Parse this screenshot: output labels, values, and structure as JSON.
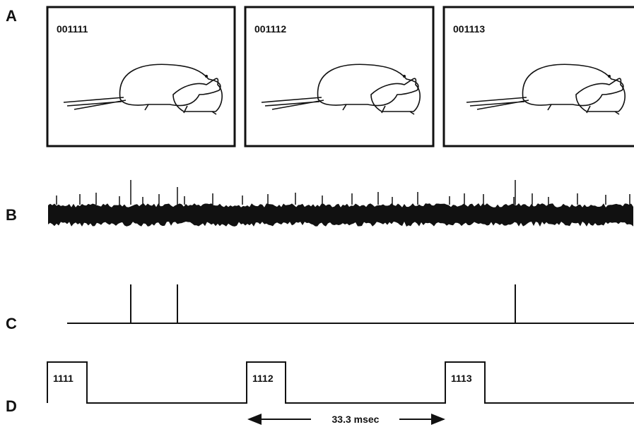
{
  "panels": {
    "a": "A",
    "b": "B",
    "c": "C",
    "d": "D"
  },
  "frames": [
    "001111",
    "001112",
    "001113"
  ],
  "pulses": [
    "1111",
    "1112",
    "1113"
  ],
  "scale_label": "33.3 msec"
}
